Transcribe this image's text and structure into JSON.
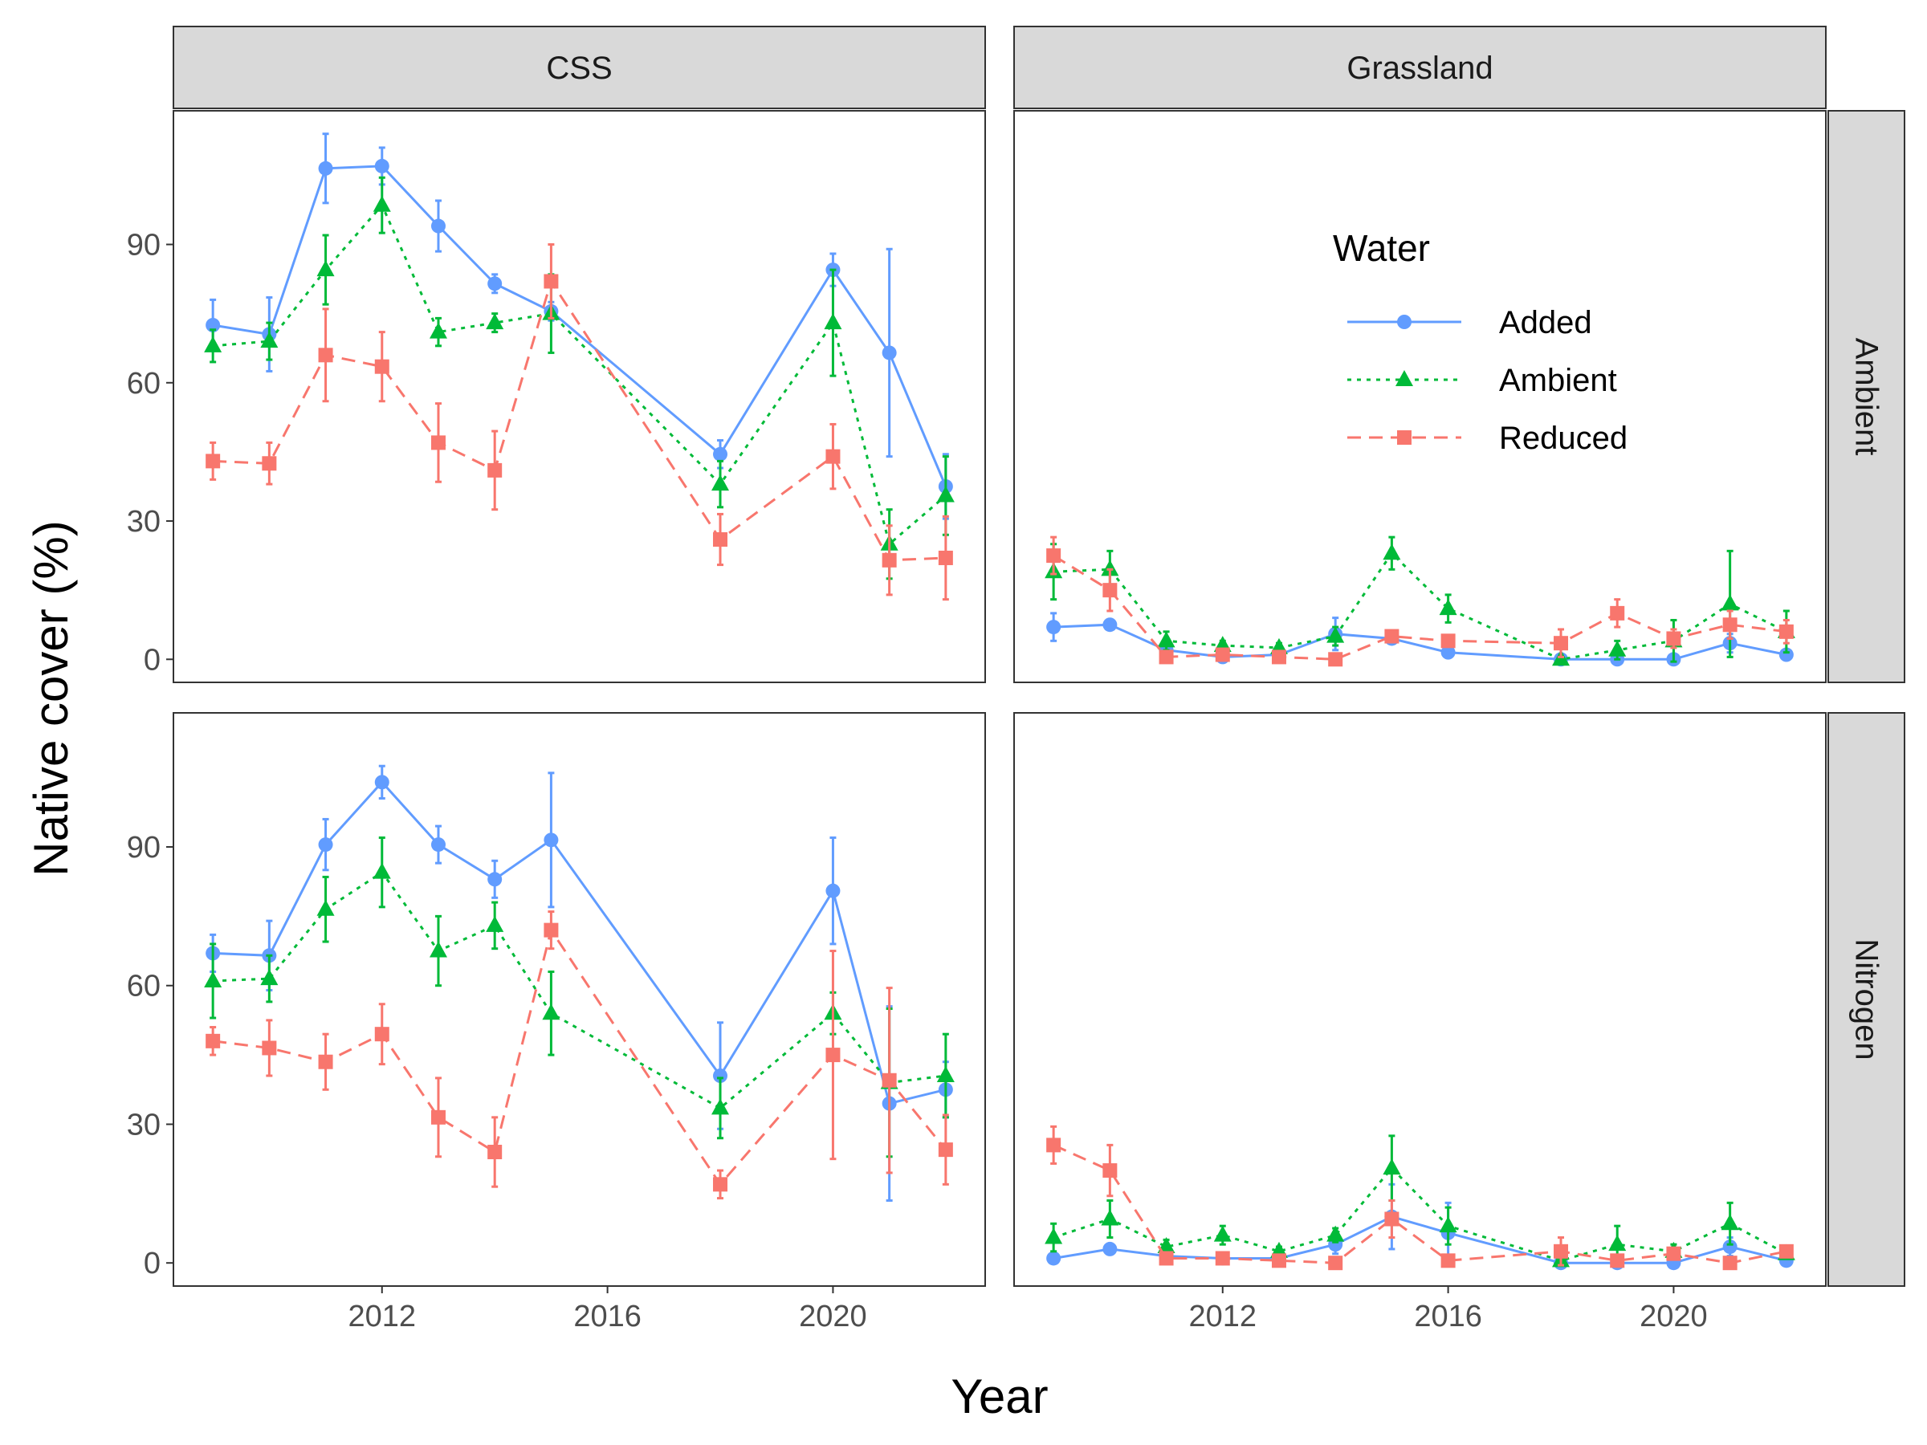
{
  "chart_data": {
    "type": "line",
    "xlabel": "Year",
    "ylabel": "Native cover (%)",
    "x_ticks": [
      2012,
      2016,
      2020
    ],
    "y_ticks": [
      0,
      30,
      60,
      90
    ],
    "xlim": [
      2008.3,
      2022.7
    ],
    "ylim": [
      -5,
      119
    ],
    "grid": false,
    "legend": {
      "title": "Water",
      "placement": "inside top-right panel",
      "entries": [
        "Added",
        "Ambient",
        "Reduced"
      ]
    },
    "colors": {
      "Added": "#619CFF",
      "Ambient": "#00BA38",
      "Reduced": "#F8766D"
    },
    "markers": {
      "Added": "circle",
      "Ambient": "triangle",
      "Reduced": "square"
    },
    "line_styles": {
      "Added": "solid",
      "Ambient": "dotted",
      "Reduced": "dashed"
    },
    "column_strips": [
      "CSS",
      "Grassland"
    ],
    "row_strips": [
      "Ambient",
      "Nitrogen"
    ],
    "panels": [
      {
        "col": "CSS",
        "row": "Ambient",
        "series": [
          {
            "name": "Added",
            "x": [
              2009,
              2010,
              2011,
              2012,
              2013,
              2014,
              2015,
              2018,
              2020,
              2021,
              2022
            ],
            "y": [
              72.5,
              70.5,
              106.5,
              107,
              94,
              81.5,
              75.5,
              44.5,
              84.5,
              66.5,
              37.5
            ],
            "err": [
              5.5,
              8,
              7.5,
              4,
              5.5,
              2,
              2,
              3,
              3.5,
              22.5,
              7
            ]
          },
          {
            "name": "Ambient",
            "x": [
              2009,
              2010,
              2011,
              2012,
              2013,
              2014,
              2015,
              2018,
              2020,
              2021,
              2022
            ],
            "y": [
              68,
              69,
              84.5,
              98.5,
              71,
              73,
              75,
              38,
              73,
              25,
              35.5
            ],
            "err": [
              3.5,
              4,
              7.5,
              6,
              3,
              2,
              8.5,
              5,
              11.5,
              7.5,
              8.5
            ]
          },
          {
            "name": "Reduced",
            "x": [
              2009,
              2010,
              2011,
              2012,
              2013,
              2014,
              2015,
              2018,
              2020,
              2021,
              2022
            ],
            "y": [
              43,
              42.5,
              66,
              63.5,
              47,
              41,
              82,
              26,
              44,
              21.5,
              22
            ],
            "err": [
              4,
              4.5,
              10,
              7.5,
              8.5,
              8.5,
              8,
              5.5,
              7,
              7.5,
              9
            ]
          }
        ]
      },
      {
        "col": "Grassland",
        "row": "Ambient",
        "series": [
          {
            "name": "Added",
            "x": [
              2009,
              2010,
              2011,
              2012,
              2013,
              2014,
              2015,
              2016,
              2018,
              2019,
              2020,
              2021,
              2022
            ],
            "y": [
              7,
              7.5,
              2,
              0.5,
              1,
              5.5,
              4.5,
              1.5,
              0,
              0,
              0,
              3.5,
              1
            ],
            "err": [
              3,
              1,
              1,
              0.5,
              0.5,
              3.5,
              1,
              0.5,
              0.5,
              0.5,
              0.5,
              2,
              0.5
            ]
          },
          {
            "name": "Ambient",
            "x": [
              2009,
              2010,
              2011,
              2012,
              2013,
              2014,
              2015,
              2016,
              2018,
              2019,
              2020,
              2021,
              2022
            ],
            "y": [
              19,
              19.5,
              4,
              3,
              2.5,
              5,
              23,
              11,
              0,
              2,
              4,
              12,
              6
            ],
            "err": [
              6,
              4,
              2,
              1,
              1,
              2,
              3.5,
              3,
              0.5,
              2,
              4.5,
              11.5,
              4.5
            ]
          },
          {
            "name": "Reduced",
            "x": [
              2009,
              2010,
              2011,
              2012,
              2013,
              2014,
              2015,
              2016,
              2018,
              2019,
              2020,
              2021,
              2022
            ],
            "y": [
              22.5,
              15,
              0.5,
              1,
              0.5,
              0,
              5,
              4,
              3.5,
              10,
              4.5,
              7.5,
              6
            ],
            "err": [
              4,
              4.5,
              0.5,
              0.5,
              0.5,
              0.5,
              1,
              1,
              3,
              3,
              2,
              3,
              2.5
            ]
          }
        ]
      },
      {
        "col": "CSS",
        "row": "Nitrogen",
        "series": [
          {
            "name": "Added",
            "x": [
              2009,
              2010,
              2011,
              2012,
              2013,
              2014,
              2015,
              2018,
              2020,
              2021,
              2022
            ],
            "y": [
              67,
              66.5,
              90.5,
              104,
              90.5,
              83,
              91.5,
              40.5,
              80.5,
              34.5,
              37.5
            ],
            "err": [
              4,
              7.5,
              5.5,
              3.5,
              4,
              4,
              14.5,
              11.5,
              11.5,
              21,
              6
            ]
          },
          {
            "name": "Ambient",
            "x": [
              2009,
              2010,
              2011,
              2012,
              2013,
              2014,
              2015,
              2018,
              2020,
              2021,
              2022
            ],
            "y": [
              61,
              61.5,
              76.5,
              84.5,
              67.5,
              73,
              54,
              33.5,
              54,
              39,
              40.5
            ],
            "err": [
              8,
              5,
              7,
              7.5,
              7.5,
              5,
              9,
              6.5,
              4.5,
              16,
              9
            ]
          },
          {
            "name": "Reduced",
            "x": [
              2009,
              2010,
              2011,
              2012,
              2013,
              2014,
              2015,
              2018,
              2020,
              2021,
              2022
            ],
            "y": [
              48,
              46.5,
              43.5,
              49.5,
              31.5,
              24,
              72,
              17,
              45,
              39.5,
              24.5
            ],
            "err": [
              3,
              6,
              6,
              6.5,
              8.5,
              7.5,
              4,
              3,
              22.5,
              20,
              7.5
            ]
          }
        ]
      },
      {
        "col": "Grassland",
        "row": "Nitrogen",
        "series": [
          {
            "name": "Added",
            "x": [
              2009,
              2010,
              2011,
              2012,
              2013,
              2014,
              2015,
              2016,
              2018,
              2019,
              2020,
              2021,
              2022
            ],
            "y": [
              1,
              3,
              1.5,
              1,
              1,
              4,
              10,
              6.5,
              0,
              0,
              0,
              3.5,
              0.5
            ],
            "err": [
              0.5,
              1,
              0.5,
              0.5,
              0.5,
              2,
              7,
              6.5,
              0.5,
              0.5,
              0.5,
              2,
              0.5
            ]
          },
          {
            "name": "Ambient",
            "x": [
              2009,
              2010,
              2011,
              2012,
              2013,
              2014,
              2015,
              2016,
              2018,
              2019,
              2020,
              2021,
              2022
            ],
            "y": [
              5.5,
              9.5,
              3.5,
              6,
              2.5,
              6,
              20.5,
              8,
              0.5,
              4,
              2.5,
              8.5,
              2
            ],
            "err": [
              3,
              4,
              1.5,
              2,
              1,
              1.5,
              7,
              4,
              0.5,
              4,
              1.5,
              4.5,
              1
            ]
          },
          {
            "name": "Reduced",
            "x": [
              2009,
              2010,
              2011,
              2012,
              2013,
              2014,
              2015,
              2016,
              2018,
              2019,
              2020,
              2021,
              2022
            ],
            "y": [
              25.5,
              20,
              1,
              1,
              0.5,
              0,
              9.5,
              0.5,
              2.5,
              0.5,
              2,
              0,
              2.5
            ],
            "err": [
              4,
              5.5,
              0.5,
              0.5,
              0.5,
              0.5,
              4,
              0.5,
              3,
              0.5,
              1,
              0.5,
              1
            ]
          }
        ]
      }
    ]
  }
}
